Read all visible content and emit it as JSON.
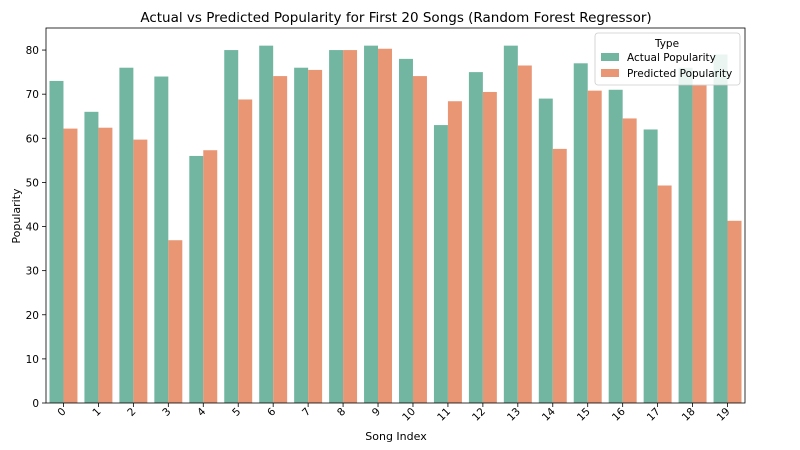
{
  "chart_data": {
    "type": "bar",
    "title": "Actual vs Predicted Popularity for First 20 Songs (Random Forest Regressor)",
    "xlabel": "Song Index",
    "ylabel": "Popularity",
    "categories": [
      "0",
      "1",
      "2",
      "3",
      "4",
      "5",
      "6",
      "7",
      "8",
      "9",
      "10",
      "11",
      "12",
      "13",
      "14",
      "15",
      "16",
      "17",
      "18",
      "19"
    ],
    "series": [
      {
        "name": "Actual Popularity",
        "color": "#72b6a1",
        "values": [
          73,
          66,
          76,
          74,
          56,
          80,
          81,
          76,
          80,
          81,
          78,
          63,
          75,
          81,
          69,
          77,
          71,
          62,
          76,
          79
        ]
      },
      {
        "name": "Predicted Popularity",
        "color": "#e99675",
        "values": [
          62.2,
          62.4,
          59.7,
          36.9,
          57.3,
          68.8,
          74.1,
          75.5,
          80.0,
          80.3,
          74.1,
          68.4,
          70.5,
          76.5,
          57.6,
          70.8,
          64.5,
          49.3,
          72.0,
          41.3
        ]
      }
    ],
    "ylim": [
      0,
      85
    ],
    "yticks": [
      0,
      10,
      20,
      30,
      40,
      50,
      60,
      70,
      80
    ],
    "grid": false,
    "legend": {
      "title": "Type",
      "placement": "top-right"
    }
  }
}
